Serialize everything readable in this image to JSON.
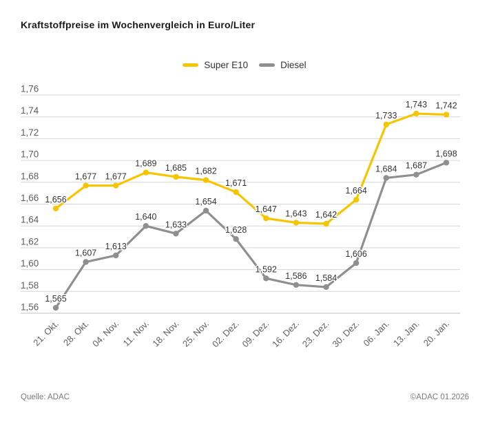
{
  "title": "Kraftstoffpreise im Wochenvergleich in Euro/Liter",
  "footer": {
    "source": "Quelle: ADAC",
    "copyright": "©ADAC 01.2026"
  },
  "colors": {
    "super_e10": "#F7C500",
    "diesel": "#8F8F8F",
    "grid": "#D6D6D6",
    "grid_strong": "#C2C2C2",
    "axis_text": "#5F5F5F",
    "value_text": "#333333",
    "title_text": "#1A1A1A",
    "footer_text": "#7A7A7A"
  },
  "chart_data": {
    "type": "line",
    "title": "Kraftstoffpreise im Wochenvergleich in Euro/Liter",
    "categories": [
      "21. Okt.",
      "28. Okt.",
      "04. Nov.",
      "11. Nov.",
      "18. Nov.",
      "25. Nov.",
      "02. Dez.",
      "09. Dez.",
      "16. Dez.",
      "23. Dez.",
      "30. Dez.",
      "06. Jan.",
      "13. Jan.",
      "20. Jan."
    ],
    "series": [
      {
        "name": "Super E10",
        "color": "#F7C500",
        "values": [
          1.656,
          1.677,
          1.677,
          1.689,
          1.685,
          1.682,
          1.671,
          1.647,
          1.643,
          1.642,
          1.664,
          1.733,
          1.743,
          1.742
        ]
      },
      {
        "name": "Diesel",
        "color": "#8F8F8F",
        "values": [
          1.565,
          1.607,
          1.613,
          1.64,
          1.633,
          1.654,
          1.628,
          1.592,
          1.586,
          1.584,
          1.606,
          1.684,
          1.687,
          1.698
        ]
      }
    ],
    "ylim": [
      1.56,
      1.76
    ],
    "ytick_step": 0.02,
    "ytick_labels": [
      "1,56",
      "1,58",
      "1,60",
      "1,62",
      "1,64",
      "1,66",
      "1,68",
      "1,70",
      "1,72",
      "1,74",
      "1,76"
    ],
    "xlabel": "",
    "ylabel": "Euro/Liter",
    "grid": true,
    "point_labels": true,
    "legend_position": "top-center",
    "decimal_separator": ","
  }
}
